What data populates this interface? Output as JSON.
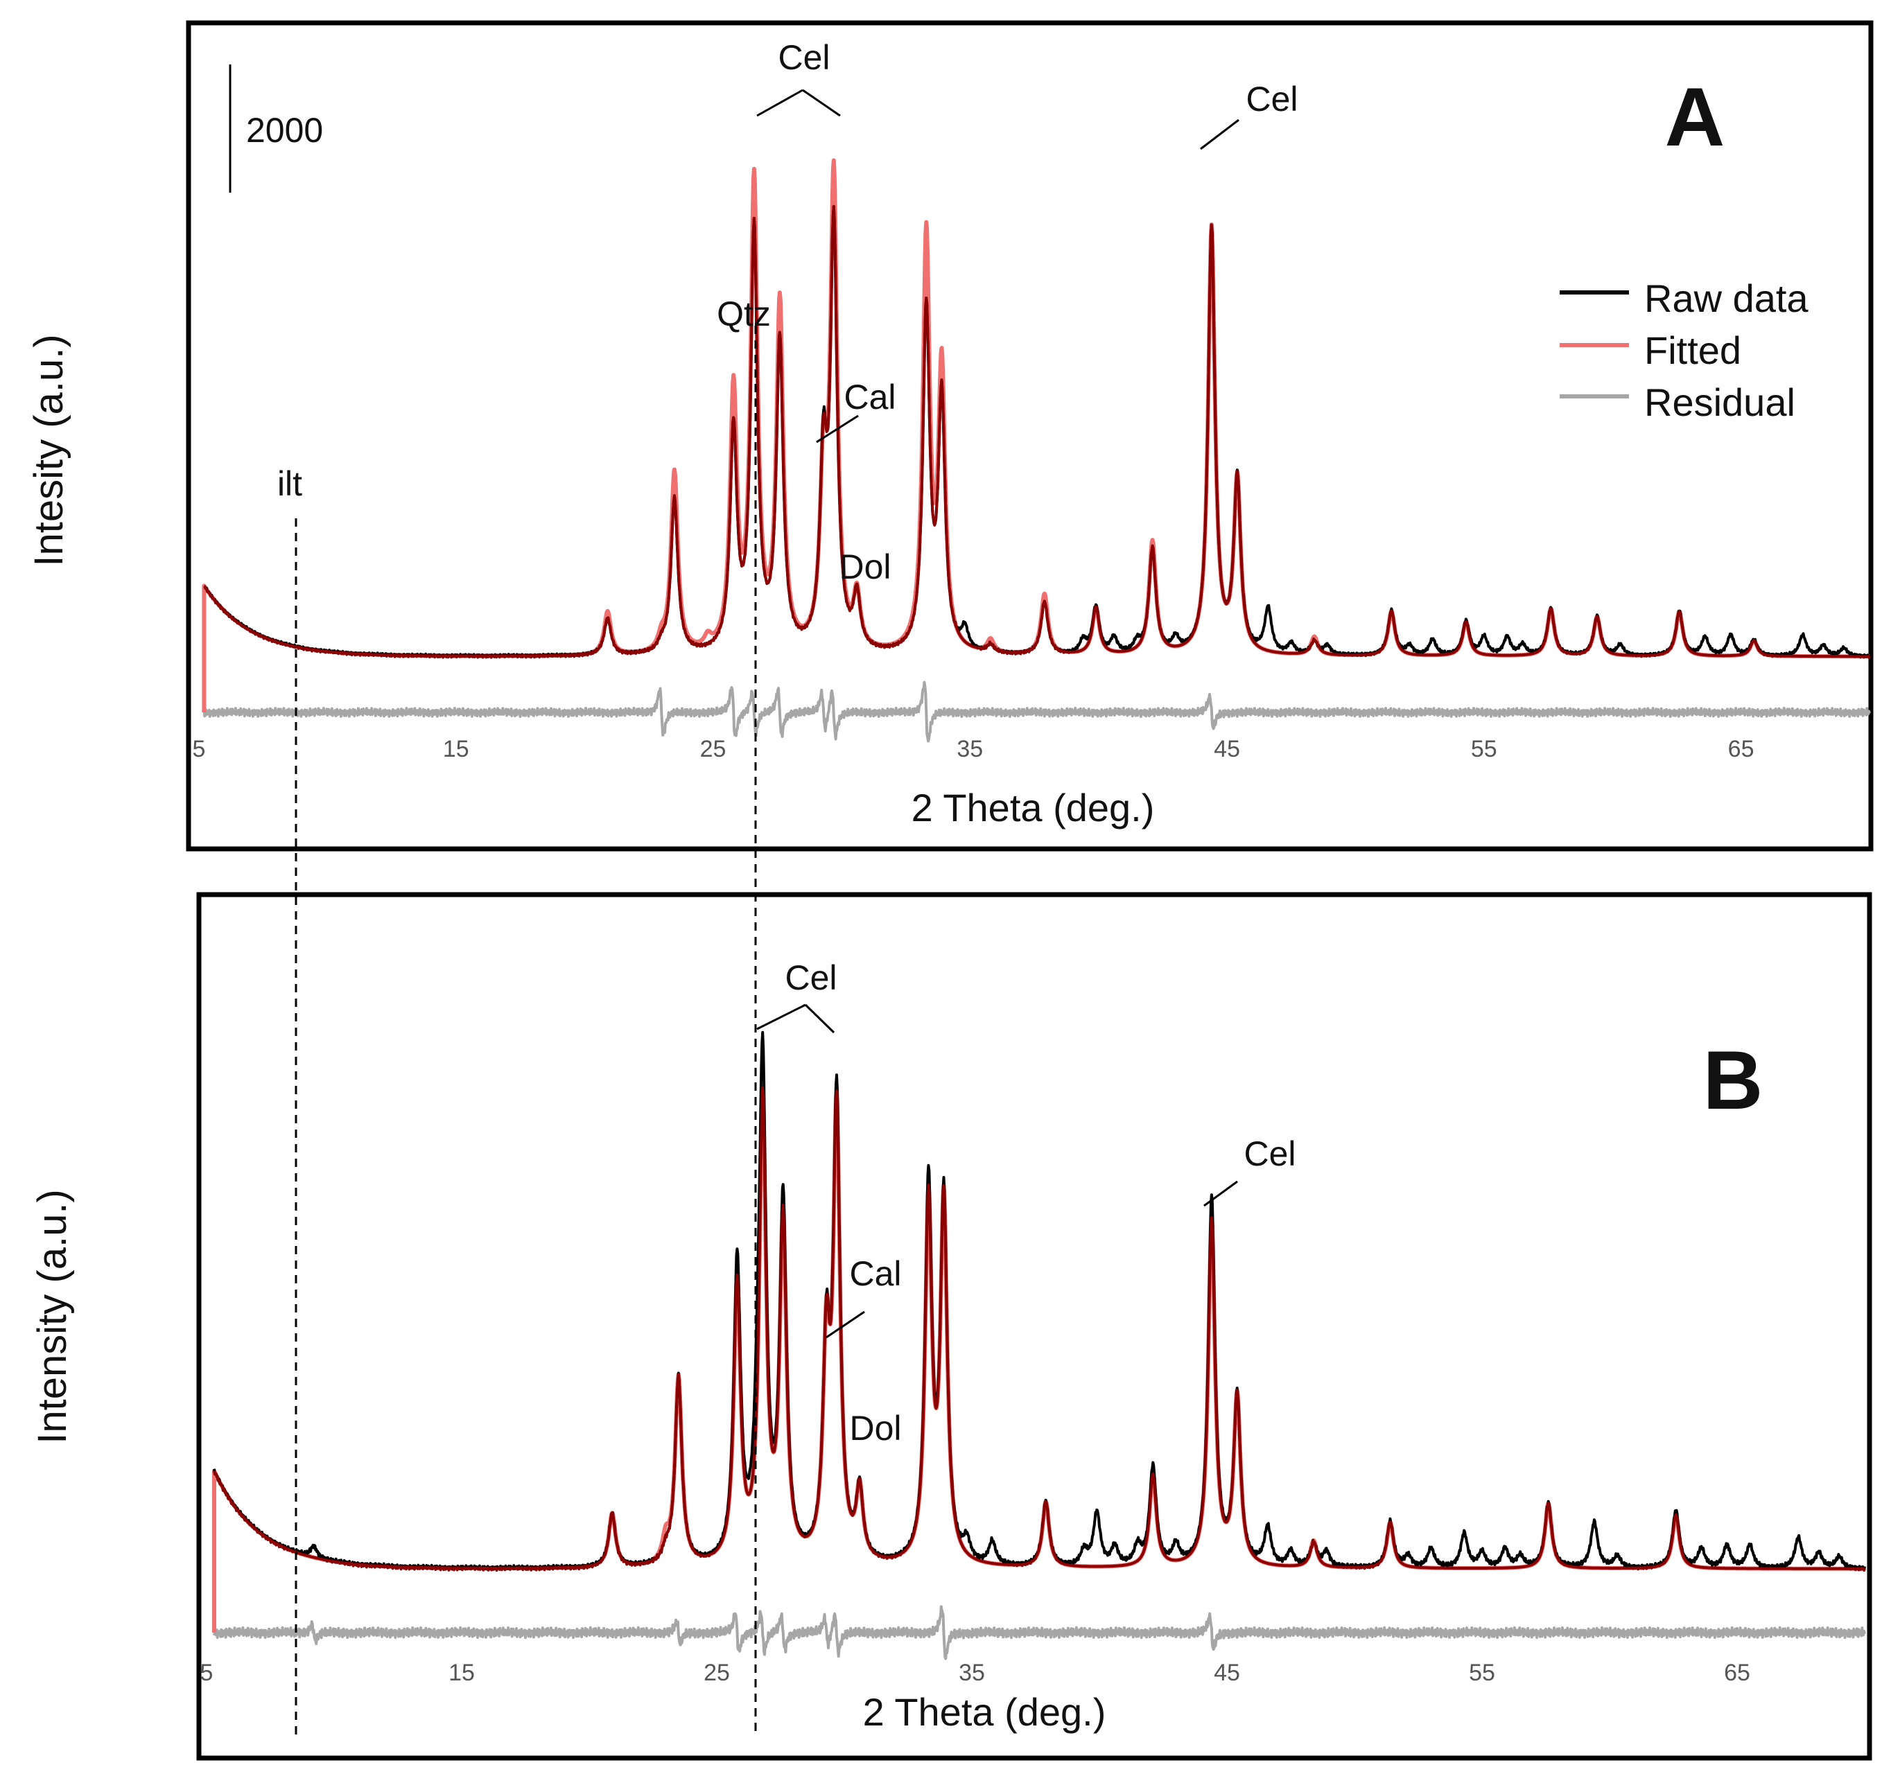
{
  "chart_data": [
    {
      "type": "line",
      "panel": "A",
      "xlabel": "2 Theta  (deg.)",
      "ylabel": "Intesity (a.u.)",
      "xlim": [
        5,
        70
      ],
      "x_ticks": [
        5,
        15,
        25,
        35,
        45,
        55,
        65
      ],
      "scale_bar_label": "2000",
      "scale_bar_value": 2000,
      "legend": {
        "position": "top-right",
        "entries": [
          "Raw data",
          "Fitted",
          "Residual"
        ]
      },
      "background": {
        "start": 3200,
        "decay": 1.8,
        "floor": 200
      },
      "series": [
        {
          "name": "Raw data",
          "peaks_2theta": [
            20.9,
            23.0,
            23.5,
            25.8,
            26.6,
            27.6,
            29.3,
            29.7,
            30.6,
            33.3,
            33.9,
            34.8,
            35.8,
            37.9,
            39.4,
            39.9,
            40.6,
            41.5,
            42.1,
            43.0,
            44.4,
            45.4,
            46.6,
            47.5,
            48.4,
            48.9,
            51.4,
            52.1,
            53.0,
            54.3,
            55.0,
            55.9,
            56.5,
            57.6,
            59.4,
            60.3,
            62.6,
            63.6,
            64.6,
            65.5,
            67.4,
            68.2,
            69.0
          ],
          "peak_heights": [
            1400,
            300,
            5900,
            8300,
            15900,
            11700,
            6900,
            15900,
            2000,
            12900,
            9500,
            800,
            300,
            2000,
            500,
            1800,
            600,
            400,
            4000,
            500,
            16200,
            6600,
            1700,
            400,
            500,
            350,
            1700,
            350,
            600,
            1300,
            700,
            700,
            400,
            1800,
            1500,
            400,
            1700,
            700,
            800,
            600,
            800,
            400,
            300
          ]
        },
        {
          "name": "Fitted",
          "peaks_2theta": [
            20.9,
            23.0,
            23.5,
            24.8,
            25.8,
            26.6,
            27.6,
            29.3,
            29.7,
            30.6,
            33.3,
            33.9,
            35.8,
            37.9,
            39.9,
            42.1,
            44.4,
            45.4,
            48.4,
            51.4,
            54.3,
            57.6,
            59.4,
            62.6,
            65.5
          ],
          "peak_heights": [
            1650,
            500,
            6900,
            400,
            9800,
            17700,
            13100,
            6400,
            17700,
            2000,
            15700,
            10600,
            500,
            2300,
            1800,
            4300,
            16200,
            6600,
            700,
            1700,
            1300,
            1800,
            1500,
            1700,
            600
          ]
        },
        {
          "name": "Residual",
          "offset_below_baseline": 1000,
          "spike_2theta": [
            23.0,
            25.8,
            26.6,
            27.6,
            29.3,
            29.7,
            33.3,
            44.4
          ],
          "spike_amplitude": [
            1000,
            1100,
            900,
            1000,
            800,
            1000,
            1300,
            700
          ]
        }
      ],
      "annotations": [
        {
          "text": "ilt",
          "x": 9.2
        },
        {
          "text": "Cel",
          "x": [
            26.6,
            29.7
          ]
        },
        {
          "text": "Qtz",
          "x": 26.6
        },
        {
          "text": "Cal",
          "x": 29.3
        },
        {
          "text": "Dol",
          "x": 30.6
        },
        {
          "text": "Cel",
          "x": 44.4
        }
      ]
    },
    {
      "type": "line",
      "panel": "B",
      "xlabel": "2 Theta  (deg.)",
      "ylabel": "Intensity (a.u.)",
      "xlim": [
        5,
        70
      ],
      "x_ticks": [
        5,
        15,
        25,
        35,
        45,
        55,
        65
      ],
      "background": {
        "start": 3200,
        "decay": 1.8,
        "floor": 200
      },
      "series": [
        {
          "name": "Raw data",
          "peaks_2theta": [
            9.2,
            20.9,
            23.0,
            23.5,
            25.8,
            26.6,
            26.8,
            27.6,
            29.3,
            29.7,
            30.6,
            33.3,
            33.9,
            34.8,
            35.8,
            37.9,
            39.4,
            39.9,
            40.6,
            41.5,
            42.1,
            43.0,
            44.4,
            45.4,
            46.6,
            47.5,
            48.4,
            48.9,
            51.4,
            52.1,
            53.0,
            54.3,
            55.0,
            55.9,
            56.5,
            57.6,
            59.4,
            60.3,
            62.6,
            63.6,
            64.6,
            65.5,
            67.4,
            68.2,
            69.0
          ],
          "peak_heights": [
            300,
            1400,
            300,
            4900,
            7800,
            2000,
            12500,
            9300,
            5300,
            11900,
            1800,
            9800,
            9400,
            500,
            600,
            1700,
            400,
            1400,
            500,
            500,
            2600,
            500,
            9600,
            4400,
            1000,
            400,
            600,
            400,
            1200,
            300,
            500,
            900,
            400,
            500,
            300,
            1700,
            1200,
            300,
            1500,
            500,
            600,
            600,
            800,
            400,
            300
          ]
        },
        {
          "name": "Fitted",
          "peaks_2theta": [
            20.9,
            23.0,
            23.5,
            25.8,
            26.8,
            27.6,
            29.3,
            29.7,
            30.6,
            33.3,
            33.9,
            37.9,
            42.1,
            44.4,
            45.4,
            48.4,
            51.4,
            57.6,
            62.6
          ],
          "peak_heights": [
            1400,
            600,
            4900,
            7200,
            11900,
            8800,
            5300,
            11500,
            1800,
            9300,
            9300,
            1700,
            2400,
            9000,
            4400,
            700,
            1200,
            1700,
            1400
          ]
        },
        {
          "name": "Residual",
          "offset_below_baseline": 1000,
          "spike_2theta": [
            9.2,
            23.5,
            25.8,
            26.8,
            27.6,
            29.3,
            29.7,
            33.9,
            44.4
          ],
          "spike_amplitude": [
            300,
            400,
            700,
            700,
            600,
            500,
            700,
            900,
            600
          ]
        }
      ],
      "annotations": [
        {
          "text": "Cel",
          "x": [
            26.8,
            29.7
          ]
        },
        {
          "text": "Cal",
          "x": 29.3
        },
        {
          "text": "Dol",
          "x": 30.6
        },
        {
          "text": "Cel",
          "x": 44.4
        },
        {
          "text": "B",
          "role": "panel-label"
        }
      ]
    }
  ],
  "panel_a": {
    "label": "A",
    "ylabel": "Intesity (a.u.)",
    "xlabel": "2 Theta  (deg.)",
    "scale_bar_label": "2000",
    "ticks": [
      "5",
      "15",
      "25",
      "35",
      "45",
      "55",
      "65"
    ],
    "legend": [
      "Raw data",
      "Fitted",
      "Residual"
    ],
    "ann_ilt": "ilt",
    "ann_cel_pair": "Cel",
    "ann_qtz": "Qtz",
    "ann_cal": "Cal",
    "ann_dol": "Dol",
    "ann_cel_single": "Cel"
  },
  "panel_b": {
    "label": "B",
    "ylabel": "Intensity (a.u.)",
    "xlabel": "2 Theta  (deg.)",
    "ticks": [
      "5",
      "15",
      "25",
      "35",
      "45",
      "55",
      "65"
    ],
    "ann_cel_pair": "Cel",
    "ann_cal": "Cal",
    "ann_dol": "Dol",
    "ann_cel_single": "Cel"
  },
  "colors": {
    "raw": "#000000",
    "fitted": "#e8191f",
    "fitted_overlay": "#8b0000",
    "residual": "#a6a6a6",
    "frame": "#000000"
  }
}
